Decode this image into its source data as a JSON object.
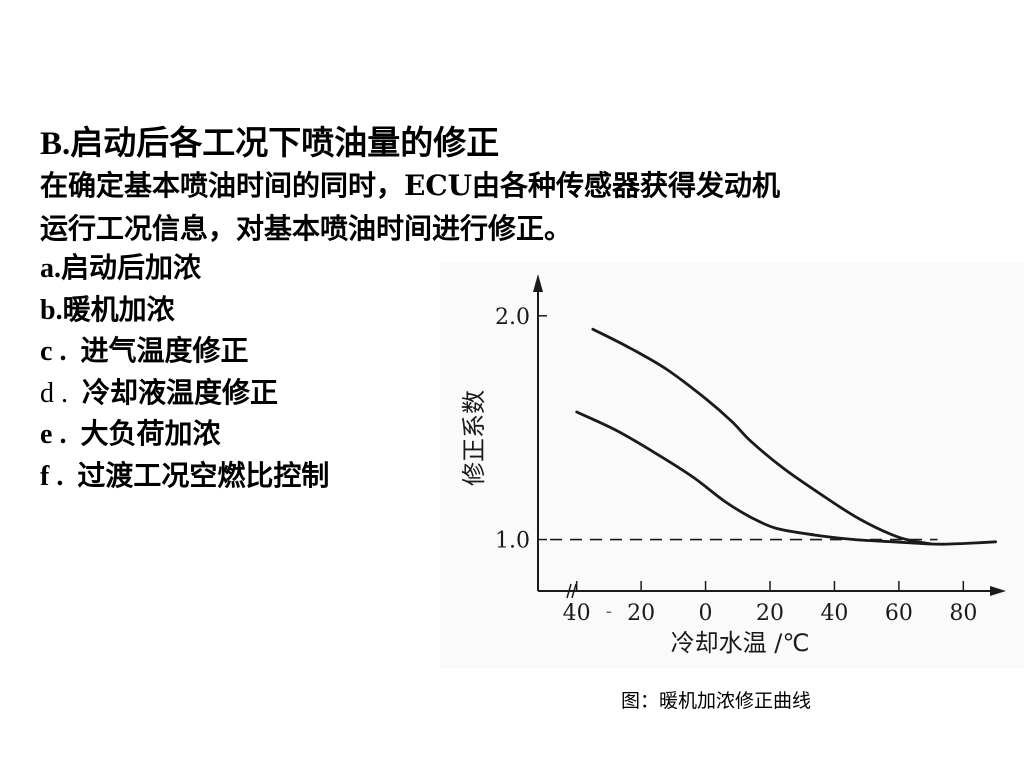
{
  "heading": {
    "marker": "B",
    "sep": ".",
    "text": "启动后各工况下喷油量的修正"
  },
  "intro": {
    "line1": "在确定基本喷油时间的同时，ECU由各种传感器获得发动机",
    "line2": "运行工况信息，对基本喷油时间进行修正。"
  },
  "items": [
    {
      "key": "a",
      "sep": ".",
      "text": "启动后加浓",
      "bold_key": true
    },
    {
      "key": "b",
      "sep": ".",
      "text": "暖机加浓",
      "bold_key": true
    },
    {
      "key": "c",
      "sep": " .  ",
      "text": "进气温度修正",
      "bold_key": true
    },
    {
      "key": "d",
      "sep": " .  ",
      "text": "冷却液温度修正",
      "bold_key": false
    },
    {
      "key": "e",
      "sep": " .  ",
      "text": "大负荷加浓",
      "bold_key": true
    },
    {
      "key": "f",
      "sep": " .  ",
      "text": "过渡工况空燃比控制",
      "bold_key": true
    }
  ],
  "chart_data": {
    "type": "line",
    "xlabel": "冷却水温 /℃",
    "ylabel": "修正系数",
    "x_ticks": [
      -40,
      -20,
      0,
      20,
      40,
      60,
      80
    ],
    "x_tick_labels": [
      "40",
      "20",
      "0",
      "20",
      "40",
      "60",
      "80"
    ],
    "y_ticks": [
      1.0,
      2.0
    ],
    "y_tick_labels": [
      "1.0",
      "2.0"
    ],
    "xlim": [
      -52,
      92
    ],
    "ylim": [
      0.77,
      2.16
    ],
    "axis_break": true,
    "grid": false,
    "reference_line": {
      "y": 1.0,
      "style": "dashed"
    },
    "series": [
      {
        "x": [
          -35,
          -24,
          -12,
          0,
          8,
          14,
          24,
          36,
          48,
          60,
          70
        ],
        "y": [
          1.94,
          1.86,
          1.76,
          1.63,
          1.53,
          1.44,
          1.32,
          1.2,
          1.09,
          1.01,
          0.98
        ]
      },
      {
        "x": [
          -40,
          -28,
          -16,
          -4,
          6,
          14,
          22,
          34,
          46,
          58,
          70,
          76,
          84,
          90
        ],
        "y": [
          1.57,
          1.49,
          1.39,
          1.28,
          1.17,
          1.1,
          1.05,
          1.02,
          1.0,
          0.99,
          0.98,
          0.98,
          0.985,
          0.99
        ]
      }
    ]
  },
  "caption": "图：暖机加浓修正曲线"
}
